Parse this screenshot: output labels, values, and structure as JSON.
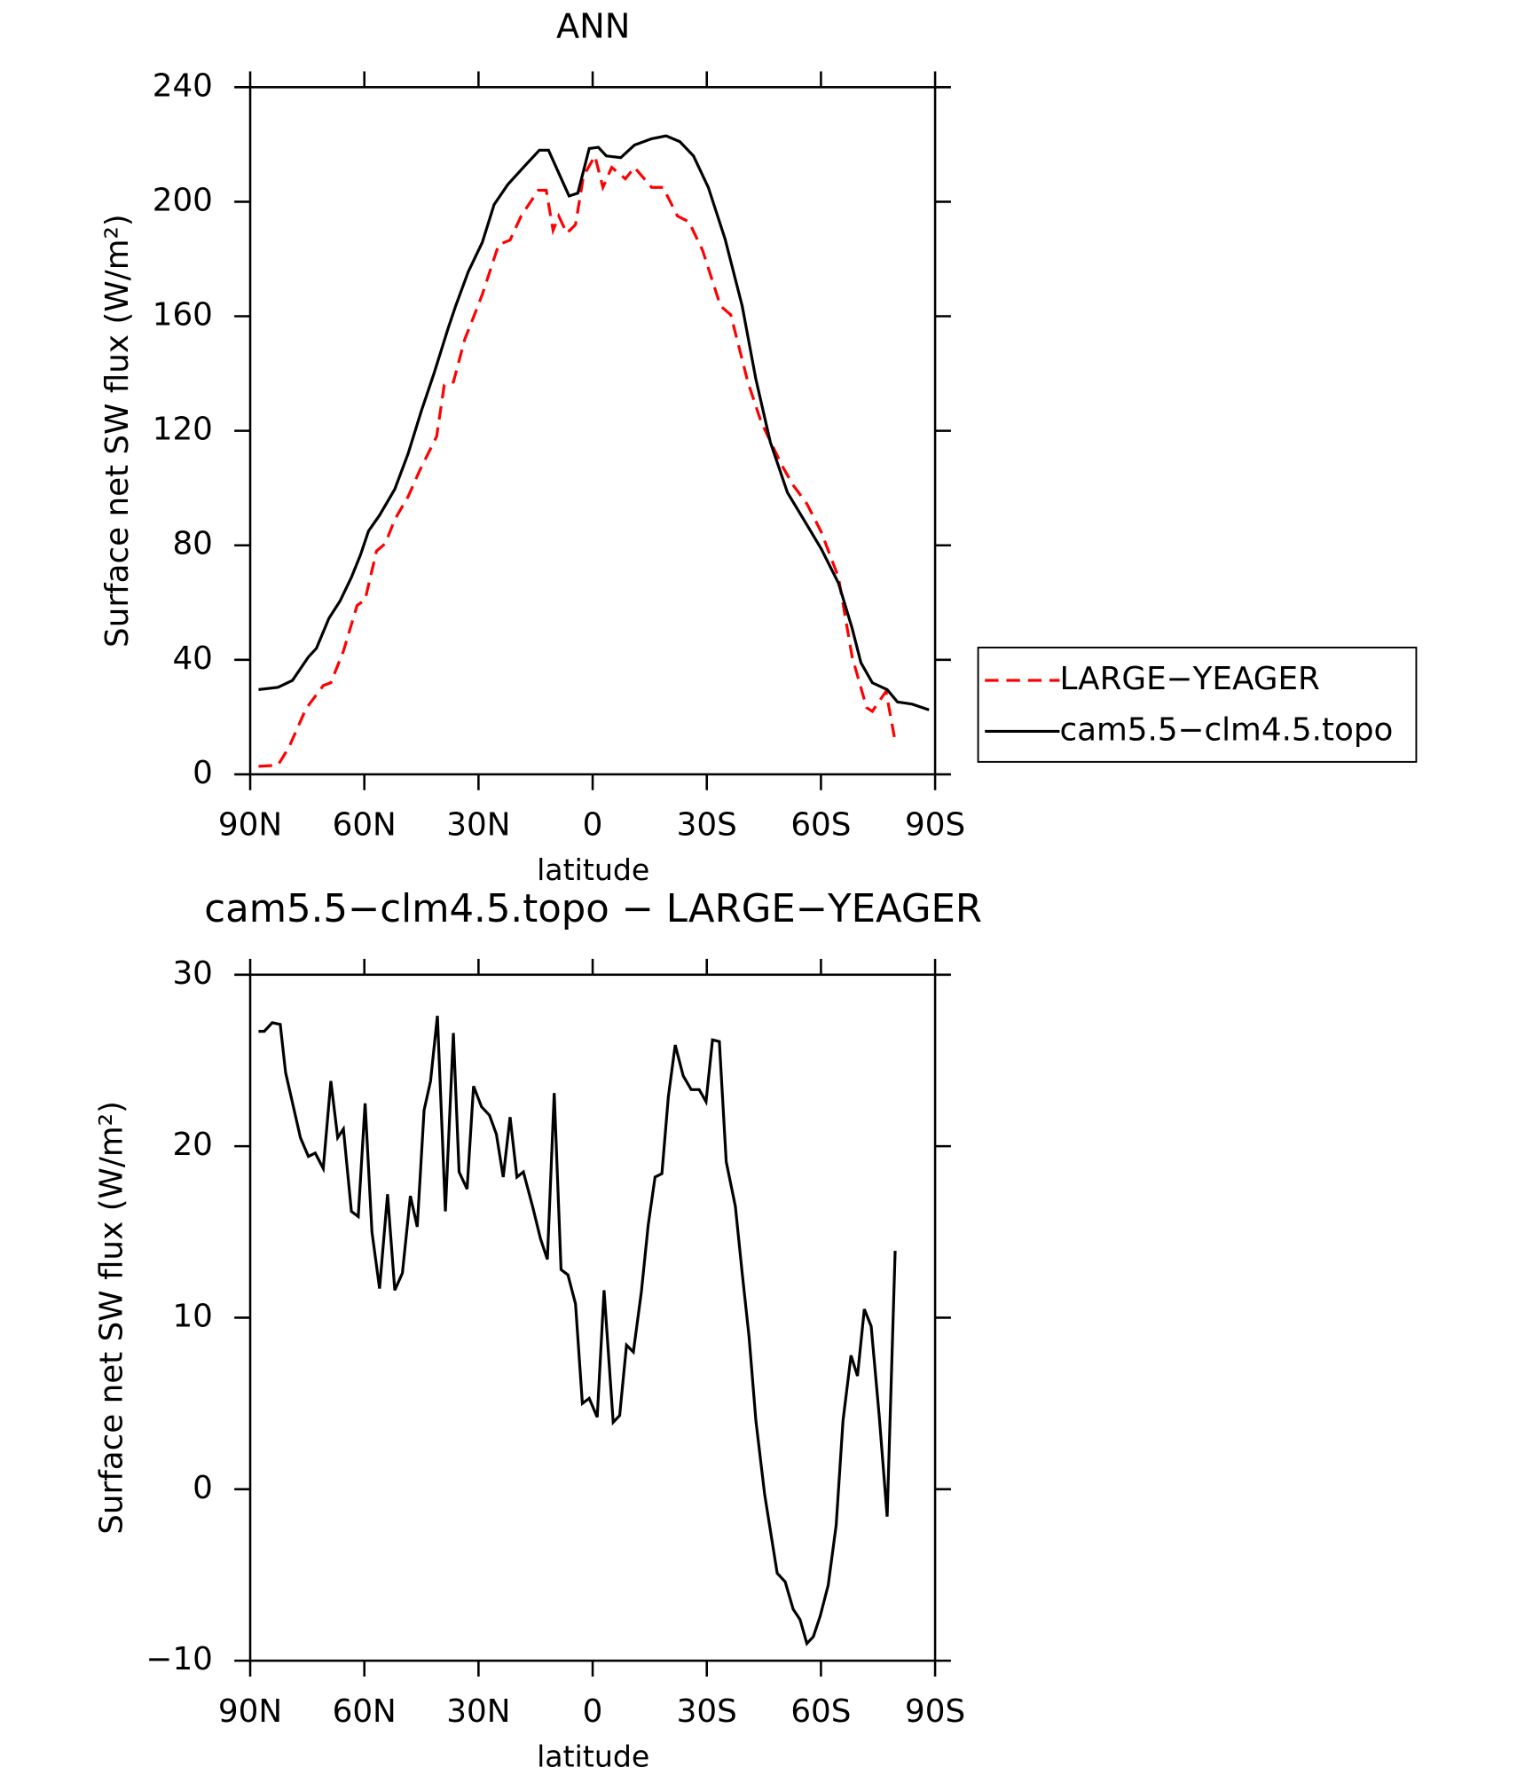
{
  "chart_data": [
    {
      "type": "line",
      "title": "ANN",
      "x_label": "latitude",
      "y_label": "Surface net SW flux (W/m²)",
      "xlim": [
        90,
        -90
      ],
      "ylim": [
        0,
        240
      ],
      "xticks": [
        {
          "value": 90,
          "label": "90N"
        },
        {
          "value": 60,
          "label": "60N"
        },
        {
          "value": 30,
          "label": "30N"
        },
        0,
        {
          "value": -30,
          "label": "30S"
        },
        {
          "value": -60,
          "label": "60S"
        },
        {
          "value": -90,
          "label": "90S"
        }
      ],
      "yticks": [
        0,
        40,
        80,
        120,
        160,
        200,
        240
      ],
      "legend": "outside-right",
      "series": [
        {
          "name": "LARGE−YEAGER",
          "color": "#ff0000",
          "line_style": "dashed",
          "x": [
            87.8,
            82.7,
            79.8,
            75.3,
            70.8,
            68.8,
            65.5,
            61.9,
            59.8,
            56.8,
            54.5,
            52,
            48.5,
            45.5,
            41,
            39,
            36.6,
            33.6,
            31.8,
            29,
            24.7,
            21.7,
            18.8,
            14.3,
            12.2,
            10.4,
            8.9,
            6.8,
            4.5,
            2.4,
            -0.6,
            -2.7,
            -5,
            -8.6,
            -11,
            -15.5,
            -18.5,
            -22.3,
            -25.3,
            -28.9,
            -33.6,
            -36.3,
            -40.8,
            -44.3,
            -49.7,
            -52.7,
            -56.3,
            -60.1,
            -64.6,
            -68.2,
            -72,
            -73.5,
            -77.1,
            -79.5
          ],
          "values": [
            2.8,
            3.2,
            9.5,
            23,
            31,
            32,
            43,
            59,
            61,
            78,
            80.6,
            89,
            97,
            106,
            118,
            136,
            137,
            152,
            158,
            167.6,
            185,
            186.6,
            195,
            204,
            204,
            190,
            195,
            189,
            192,
            209,
            216,
            205,
            212,
            208,
            212,
            205,
            205,
            195,
            193,
            183,
            163.6,
            160.5,
            137,
            123,
            108,
            101,
            94.5,
            84.6,
            68.8,
            41,
            23.3,
            22,
            29,
            11.5
          ]
        },
        {
          "name": "cam5.5−clm4.5.topo",
          "color": "#000000",
          "line_style": "solid",
          "x": [
            87.8,
            82.7,
            78.9,
            74.7,
            72.6,
            69.3,
            66.4,
            63.4,
            61,
            58.9,
            56,
            52,
            48.5,
            45,
            41.7,
            38,
            36,
            32.7,
            29,
            25.9,
            22.3,
            18.2,
            14,
            11.6,
            6.2,
            3.9,
            0.9,
            -1.5,
            -3.6,
            -7.4,
            -11,
            -15.5,
            -19.3,
            -22.9,
            -26.5,
            -30.4,
            -34.8,
            -39.3,
            -42.9,
            -46.7,
            -51.2,
            -55.7,
            -60.1,
            -64.6,
            -68.2,
            -70.5,
            -73.5,
            -77.4,
            -80.1,
            -84,
            -88.4
          ],
          "values": [
            29.6,
            30.4,
            32.8,
            41,
            44,
            54.5,
            60.5,
            68.8,
            76.7,
            85,
            90.5,
            99.6,
            112,
            127,
            140,
            155.7,
            163.6,
            175.5,
            185.8,
            199,
            206,
            212,
            218,
            218,
            202,
            203,
            218.6,
            219,
            216,
            215.4,
            219.8,
            222,
            223,
            221,
            216,
            205,
            187,
            163.6,
            138,
            116,
            98.4,
            88.5,
            78.7,
            66.8,
            51,
            39,
            32,
            29.6,
            25.3,
            24.5,
            22.5
          ]
        }
      ]
    },
    {
      "type": "line",
      "title": "cam5.5−clm4.5.topo − LARGE−YEAGER",
      "x_label": "latitude",
      "y_label": "Surface net SW flux (W/m²)",
      "xlim": [
        90,
        -90
      ],
      "ylim": [
        -10,
        30
      ],
      "xticks": [
        {
          "value": 90,
          "label": "90N"
        },
        {
          "value": 60,
          "label": "60N"
        },
        {
          "value": 30,
          "label": "30N"
        },
        0,
        {
          "value": -30,
          "label": "30S"
        },
        {
          "value": -60,
          "label": "60S"
        },
        {
          "value": -90,
          "label": "90S"
        }
      ],
      "yticks": [
        {
          "value": -10,
          "label": "−10"
        },
        0,
        10,
        20,
        30
      ],
      "series": [
        {
          "color": "#000000",
          "line_style": "solid",
          "x": [
            87.8,
            86.3,
            84.2,
            82.1,
            80.7,
            76.8,
            74.7,
            72.9,
            70.8,
            68.8,
            67,
            65.5,
            63.4,
            61.6,
            59.8,
            58,
            56,
            53.9,
            52,
            50,
            47.9,
            46.1,
            44.3,
            42.6,
            40.8,
            38.7,
            36.6,
            35.1,
            33,
            31.3,
            29.2,
            27.1,
            25.3,
            23.5,
            21.7,
            19.9,
            18.2,
            15.8,
            13.7,
            11.9,
            10.1,
            8.3,
            6.5,
            4.5,
            2.7,
            0.9,
            -1.2,
            -3,
            -5.4,
            -7.1,
            -8.9,
            -10.7,
            -12.8,
            -14.6,
            -16.4,
            -18.2,
            -19.9,
            -21.7,
            -23.8,
            -25.9,
            -28,
            -29.8,
            -31.5,
            -33.3,
            -35.1,
            -37.5,
            -39.3,
            -41.1,
            -42.9,
            -45.2,
            -48.5,
            -50.6,
            -52.7,
            -54.5,
            -56.3,
            -58,
            -59.8,
            -61.9,
            -64,
            -65.8,
            -67.9,
            -69.6,
            -71.4,
            -73.2,
            -75.3,
            -77.4,
            -79.5
          ],
          "values": [
            26.7,
            26.7,
            27.2,
            27.1,
            24.3,
            20.5,
            19.4,
            19.6,
            18.7,
            23.8,
            20.5,
            21,
            16.2,
            15.9,
            22.5,
            15,
            11.7,
            17.2,
            11.6,
            12.6,
            17.1,
            15.3,
            22.1,
            23.8,
            27.6,
            16.2,
            26.6,
            18.5,
            17.5,
            23.5,
            22.3,
            21.8,
            20.7,
            18.2,
            21.7,
            18.2,
            18.5,
            16.5,
            14.6,
            13.4,
            23.1,
            12.8,
            12.5,
            10.8,
            5,
            5.3,
            4.2,
            11.6,
            3.9,
            4.3,
            8.4,
            8,
            11.5,
            15.4,
            18.2,
            18.4,
            22.9,
            25.9,
            24.1,
            23.3,
            23.3,
            22.6,
            26.2,
            26.1,
            19.1,
            16.5,
            12.6,
            8.9,
            4,
            -0.3,
            -4.9,
            -5.4,
            -7,
            -7.6,
            -9,
            -8.6,
            -7.4,
            -5.6,
            -2.1,
            4,
            7.8,
            6.6,
            10.5,
            9.5,
            4.3,
            -1.6,
            13.9
          ]
        }
      ]
    }
  ]
}
